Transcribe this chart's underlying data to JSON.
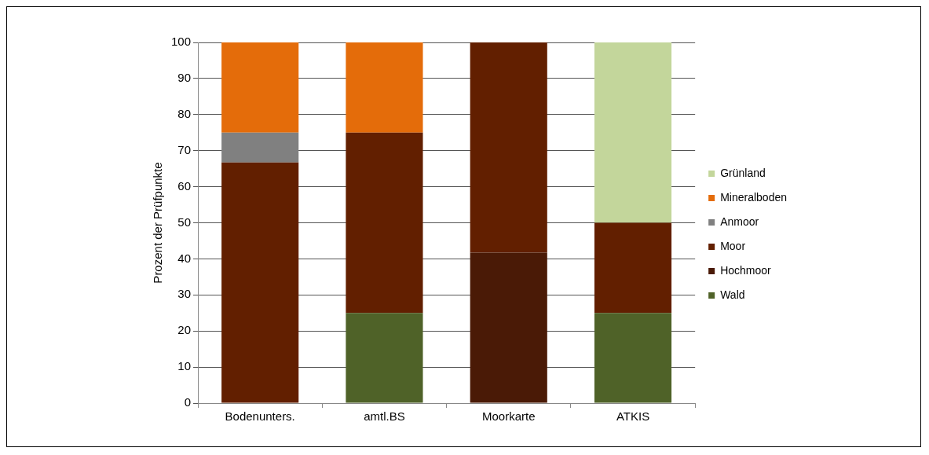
{
  "chart_data": {
    "type": "bar",
    "stacked": true,
    "ylabel": "Prozent der Prüfpunkte",
    "categories": [
      "Bodenunters.",
      "amtl.BS",
      "Moorkarte",
      "ATKIS"
    ],
    "series": [
      {
        "name": "Wald",
        "color": "#4f6228",
        "values": [
          0,
          25,
          0,
          25
        ]
      },
      {
        "name": "Hochmoor",
        "color": "#4a1a06",
        "values": [
          0,
          0,
          41.7,
          0
        ]
      },
      {
        "name": "Moor",
        "color": "#621f00",
        "values": [
          66.7,
          50,
          58.3,
          25
        ]
      },
      {
        "name": "Anmoor",
        "color": "#808080",
        "values": [
          8.3,
          0,
          0,
          0
        ]
      },
      {
        "name": "Mineralboden",
        "color": "#e46c0a",
        "values": [
          25,
          25,
          0,
          0
        ]
      },
      {
        "name": "Grünland",
        "color": "#c3d69b",
        "values": [
          0,
          0,
          0,
          50
        ]
      }
    ],
    "ylim": [
      0,
      100
    ],
    "yticks": [
      0,
      10,
      20,
      30,
      40,
      50,
      60,
      70,
      80,
      90,
      100
    ],
    "grid": "y",
    "legend": "right"
  }
}
